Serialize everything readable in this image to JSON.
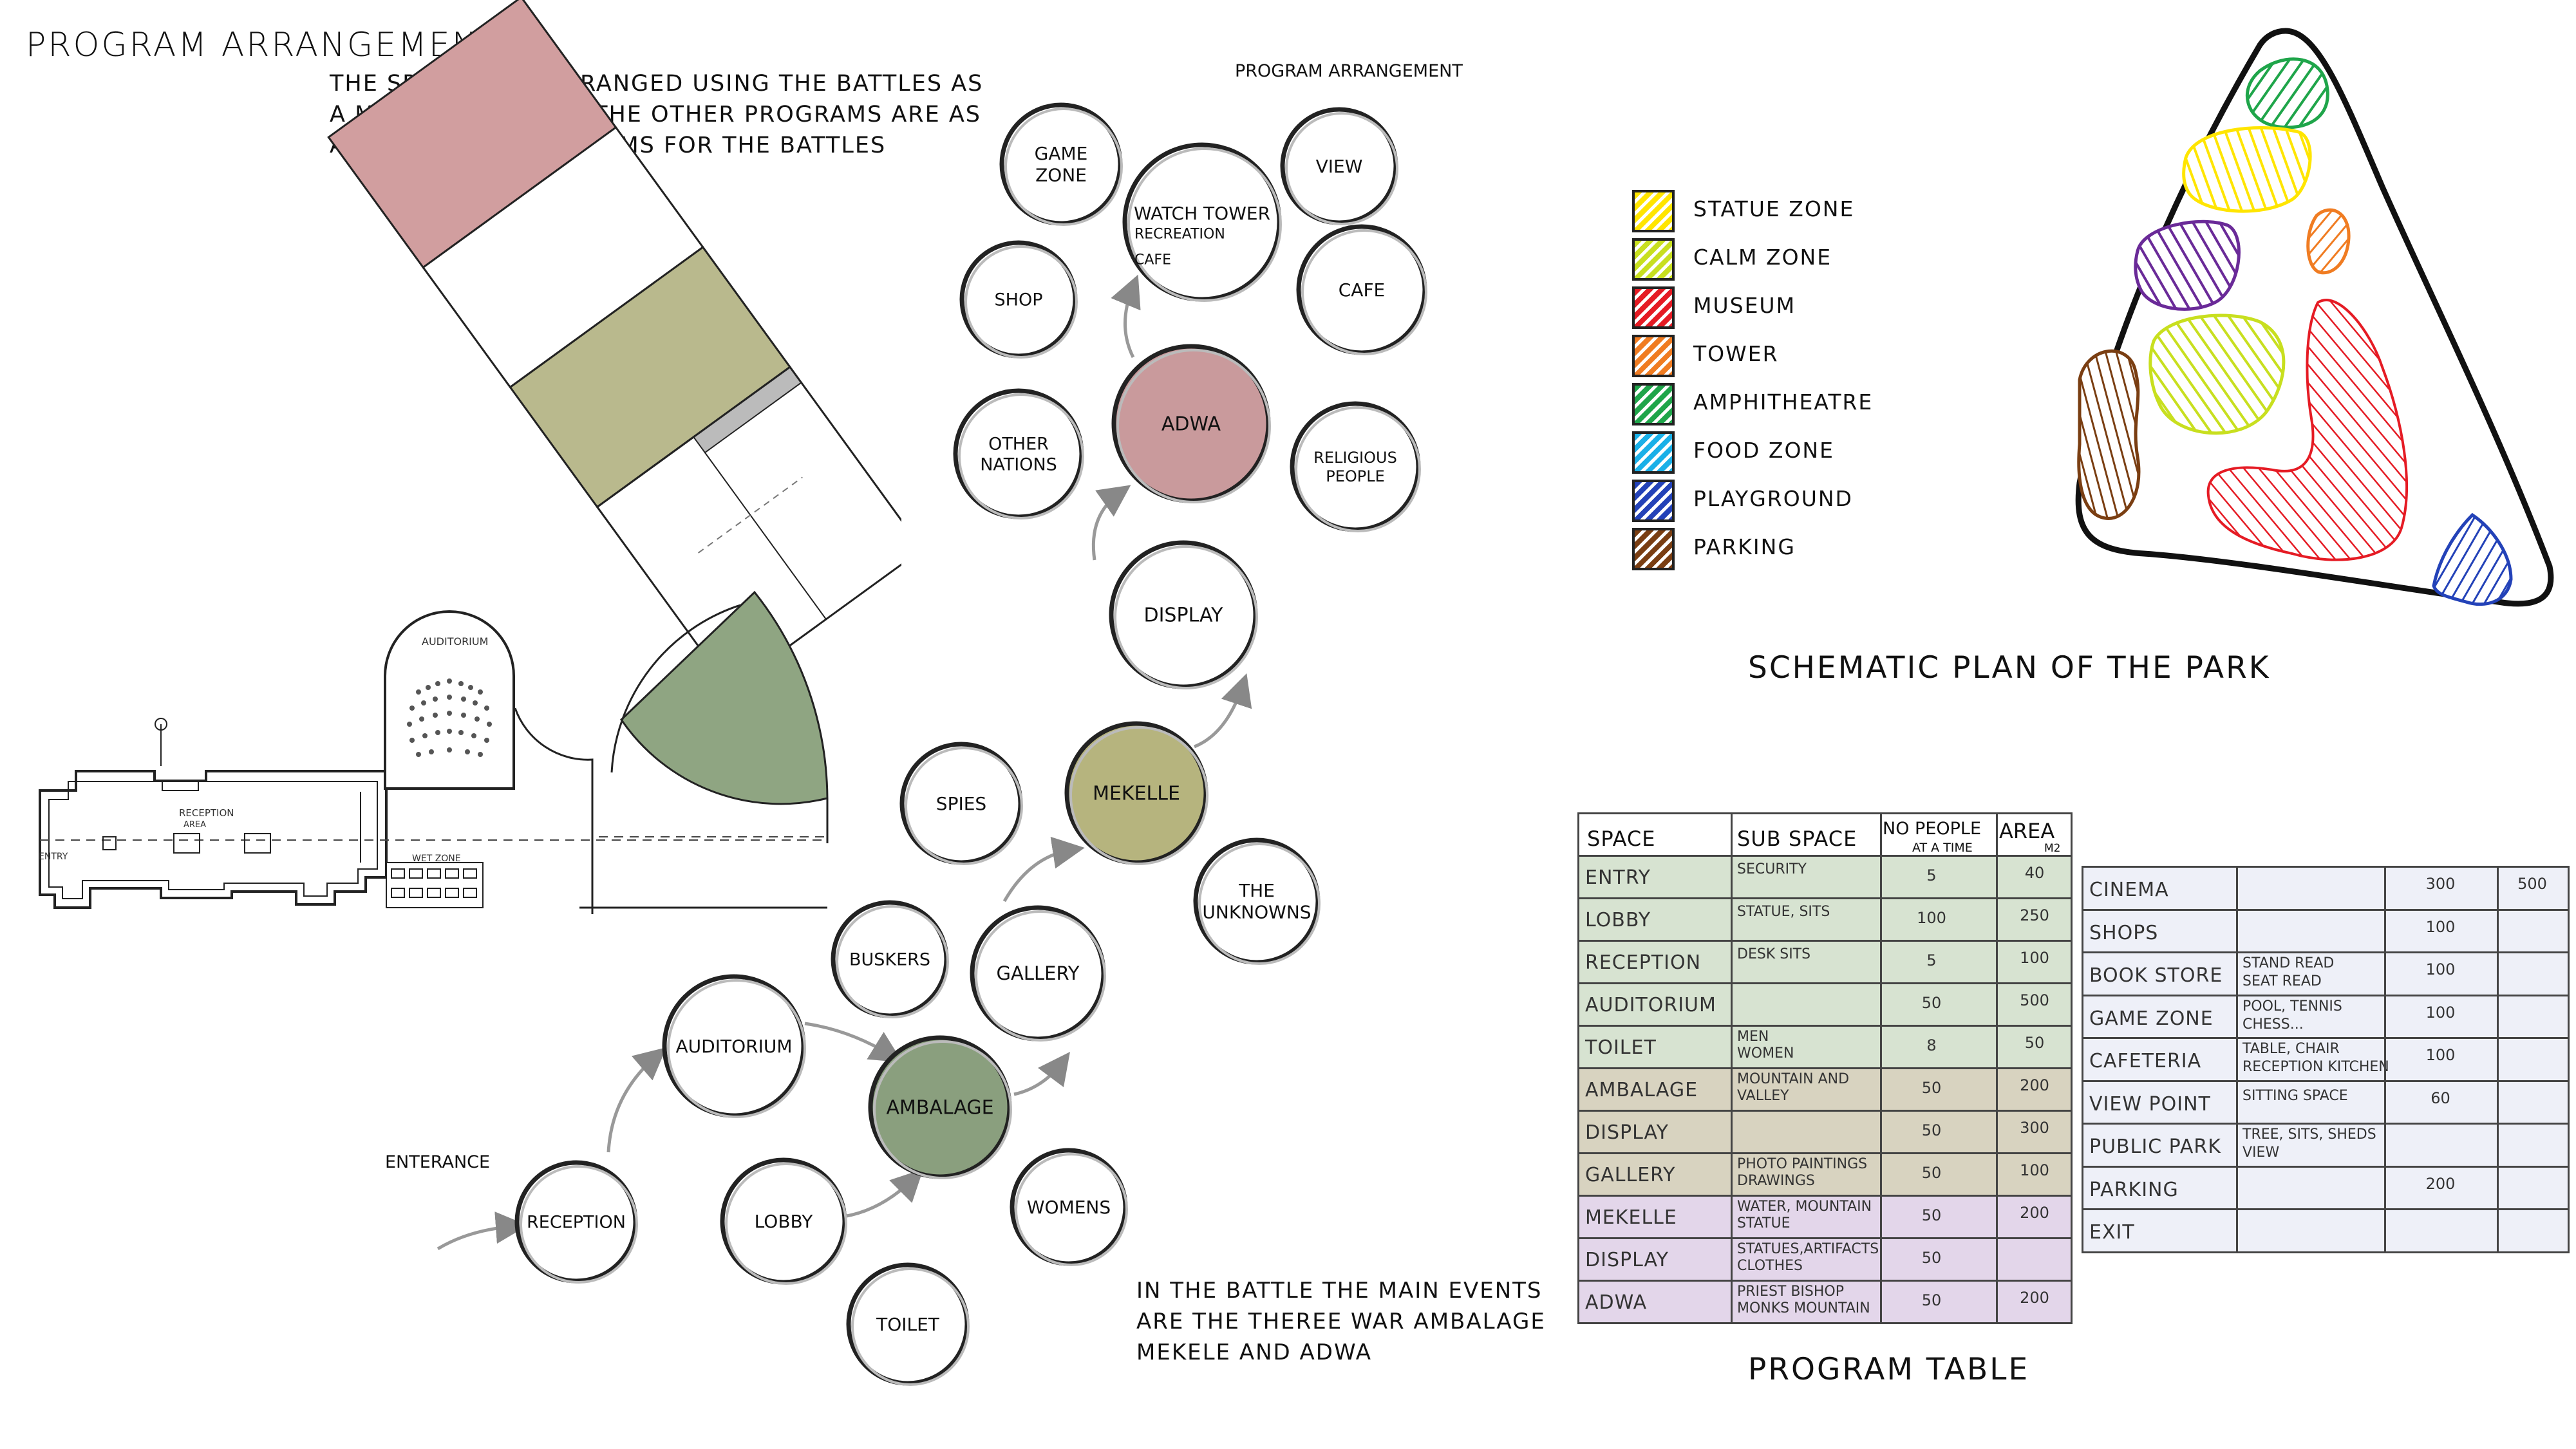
{
  "title": "PROGRAM ARRANGEMENT",
  "intro": [
    "THE SPACES ARE ARRANGED USING THE BATTLES AS",
    "A MAIN EVENTS AND THE OTHER PROGRAMS ARE AS",
    "A SUPPORTING PLOGRAMS FOR THE BATTLES"
  ],
  "bubble_diagram": {
    "title": "PROGRAM ARRANGEMENT",
    "entrance_label": "ENTERANCE",
    "bubbles": [
      {
        "label": "GAME\nZONE"
      },
      {
        "label": "WATCH TOWER"
      },
      {
        "label": "RECREATION"
      },
      {
        "label": "CAFE"
      },
      {
        "label": "VIEW"
      },
      {
        "label": "SHOP"
      },
      {
        "label": "CAFE"
      },
      {
        "label": "OTHER\nNATIONS"
      },
      {
        "label": "ADWA",
        "fill": "#c99a9c"
      },
      {
        "label": "RELIGIOUS\nPEOPLE"
      },
      {
        "label": "DISPLAY"
      },
      {
        "label": "SPIES"
      },
      {
        "label": "MEKELLE",
        "fill": "#b6b47e"
      },
      {
        "label": "THE\nUNKNOWNS"
      },
      {
        "label": "BUSKERS"
      },
      {
        "label": "GALLERY"
      },
      {
        "label": "AUDITORIUM"
      },
      {
        "label": "AMBALAGE",
        "fill": "#8a9f7e"
      },
      {
        "label": "RECEPTION"
      },
      {
        "label": "LOBBY"
      },
      {
        "label": "WOMENS"
      },
      {
        "label": "TOILET"
      }
    ]
  },
  "floor_plan": {
    "labels": {
      "auditorium": "AUDITORIUM",
      "reception": "RECEPTION",
      "reception_area": "AREA",
      "entry": "ENTRY",
      "wet_zone": "WET ZONE"
    },
    "colors": {
      "pink": "#d19e9f",
      "olive": "#b9b98d",
      "green": "#8fa582"
    }
  },
  "battle_note": [
    "IN THE BATTLE THE MAIN EVENTS",
    "ARE THE THEREE WAR AMBALAGE",
    "MEKELE AND ADWA"
  ],
  "legend": [
    {
      "label": "STATUE ZONE",
      "color": "#ffe500"
    },
    {
      "label": "CALM ZONE",
      "color": "#c8df1f"
    },
    {
      "label": "MUSEUM",
      "color": "#e51b24"
    },
    {
      "label": "TOWER",
      "color": "#f07c22"
    },
    {
      "label": "AMPHITHEATRE",
      "color": "#1fa54a"
    },
    {
      "label": "FOOD ZONE",
      "color": "#1ab0e8"
    },
    {
      "label": "PLAYGROUND",
      "color": "#2342b8"
    },
    {
      "label": "PARKING",
      "color": "#7a3e12"
    }
  ],
  "schematic_title": "SCHEMATIC PLAN OF THE PARK",
  "program_table": {
    "title": "PROGRAM TABLE",
    "headers": {
      "space": "SPACE",
      "sub_space": "SUB SPACE",
      "no_people": "NO PEOPLE",
      "no_people_sub": "AT A TIME",
      "area": "AREA",
      "area_sub": "M2"
    },
    "rows": [
      {
        "space": "ENTRY",
        "sub": [
          "SECURITY"
        ],
        "people": "5",
        "area": "40",
        "band": "green"
      },
      {
        "space": "LOBBY",
        "sub": [
          "STATUE, SITS"
        ],
        "people": "100",
        "area": "250",
        "band": "green"
      },
      {
        "space": "RECEPTION",
        "sub": [
          "DESK SITS"
        ],
        "people": "5",
        "area": "100",
        "band": "green"
      },
      {
        "space": "AUDITORIUM",
        "sub": [],
        "people": "50",
        "area": "500",
        "band": "green"
      },
      {
        "space": "TOILET",
        "sub": [
          "MEN",
          "WOMEN"
        ],
        "people": "8",
        "area": "50",
        "band": "green"
      },
      {
        "space": "AMBALAGE",
        "sub": [
          "MOUNTAIN AND",
          "VALLEY"
        ],
        "people": "50",
        "area": "200",
        "band": "tan"
      },
      {
        "space": "DISPLAY",
        "sub": [],
        "people": "50",
        "area": "300",
        "band": "tan"
      },
      {
        "space": "GALLERY",
        "sub": [
          "PHOTO PAINTINGS",
          "DRAWINGS"
        ],
        "people": "50",
        "area": "100",
        "band": "tan"
      },
      {
        "space": "MEKELLE",
        "sub": [
          "WATER, MOUNTAIN",
          "STATUE"
        ],
        "people": "50",
        "area": "200",
        "band": "lilac"
      },
      {
        "space": "DISPLAY",
        "sub": [
          "STATUES,ARTIFACTS",
          "CLOTHES"
        ],
        "people": "50",
        "area": "",
        "band": "lilac"
      },
      {
        "space": "ADWA",
        "sub": [
          "PRIEST  BISHOP",
          "MONKS MOUNTAIN"
        ],
        "people": "50",
        "area": "200",
        "band": "lilac"
      }
    ],
    "band_colors": {
      "green": "#d7e3d1",
      "tan": "#d8d3c0",
      "lilac": "#e3d6ea"
    }
  },
  "second_table": {
    "rows": [
      {
        "space": "CINEMA",
        "sub": [],
        "people": "300",
        "area": "500"
      },
      {
        "space": "SHOPS",
        "sub": [],
        "people": "100",
        "area": ""
      },
      {
        "space": "BOOK STORE",
        "sub": [
          "STAND READ",
          "SEAT READ"
        ],
        "people": "100",
        "area": ""
      },
      {
        "space": "GAME ZONE",
        "sub": [
          "POOL, TENNIS",
          "CHESS..."
        ],
        "people": "100",
        "area": ""
      },
      {
        "space": "CAFETERIA",
        "sub": [
          "TABLE, CHAIR",
          "RECEPTION KITCHEN"
        ],
        "people": "100",
        "area": ""
      },
      {
        "space": "VIEW POINT",
        "sub": [
          "SITTING SPACE"
        ],
        "people": "60",
        "area": ""
      },
      {
        "space": "PUBLIC PARK",
        "sub": [
          "TREE, SITS, SHEDS",
          "VIEW"
        ],
        "people": "",
        "area": ""
      },
      {
        "space": "PARKING",
        "sub": [],
        "people": "200",
        "area": ""
      },
      {
        "space": "EXIT",
        "sub": [],
        "people": "",
        "area": ""
      }
    ],
    "bg": "#eef0f8"
  }
}
